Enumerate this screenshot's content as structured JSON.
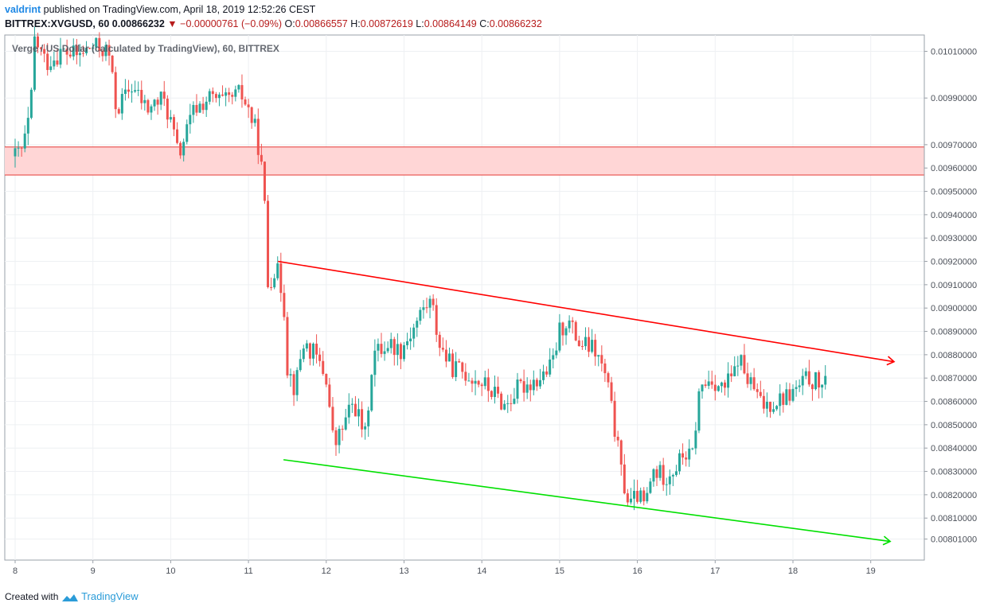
{
  "header": {
    "author": "valdrint",
    "published_text": "published on TradingView.com, April 18, 2019 12:52:26 CEST",
    "symbol": "BITTREX:XVGUSD, 60",
    "last": "0.00866232",
    "change": "▼ −0.00000761 (−0.09%)",
    "o_label": "O:",
    "o_value": "0.00866557",
    "h_label": "H:",
    "h_value": "0.00872619",
    "l_label": "L:",
    "l_value": "0.00864149",
    "c_label": "C:",
    "c_value": "0.00866232"
  },
  "footer": {
    "created_with": "Created with",
    "brand": "TradingView"
  },
  "chart_data": {
    "type": "candlestick",
    "title": "Verge / US Dollar (calculated by TradingView), 60, BITTREX",
    "x_ticks": [
      "8",
      "9",
      "10",
      "11",
      "12",
      "13",
      "14",
      "15",
      "16",
      "17",
      "18",
      "19"
    ],
    "x_range": [
      8,
      19.2
    ],
    "y_ticks": [
      "0.01010000",
      "0.00990000",
      "0.00970000",
      "0.00960000",
      "0.00950000",
      "0.00940000",
      "0.00930000",
      "0.00920000",
      "0.00910000",
      "0.00900000",
      "0.00890000",
      "0.00880000",
      "0.00870000",
      "0.00860000",
      "0.00850000",
      "0.00840000",
      "0.00830000",
      "0.00820000",
      "0.00810000",
      "0.00801000"
    ],
    "y_range": [
      0.00792,
      0.01017
    ],
    "colors": {
      "up": "#26a69a",
      "down": "#ef5350",
      "resistance_line": "#ff0000",
      "support_line": "#00e000",
      "zone_fill": "#ffd6d6",
      "zone_edge": "#e53935"
    },
    "resistance_zone": {
      "from": 0.00957,
      "to": 0.00969
    },
    "trendlines": [
      {
        "name": "upper",
        "x1": 11.38,
        "y1": 0.0092,
        "x2": 19.3,
        "y2": 0.00877,
        "color": "#ff0000"
      },
      {
        "name": "lower",
        "x1": 11.45,
        "y1": 0.00835,
        "x2": 19.25,
        "y2": 0.008,
        "color": "#00e000"
      }
    ],
    "path": [
      [
        8.0,
        0.00965
      ],
      [
        8.1,
        0.00968
      ],
      [
        8.2,
        0.00985
      ],
      [
        8.25,
        0.01015
      ],
      [
        8.4,
        0.01005
      ],
      [
        8.6,
        0.0101
      ],
      [
        8.8,
        0.01008
      ],
      [
        9.0,
        0.01012
      ],
      [
        9.2,
        0.0101
      ],
      [
        9.3,
        0.00985
      ],
      [
        9.5,
        0.00995
      ],
      [
        9.7,
        0.00985
      ],
      [
        9.9,
        0.0099
      ],
      [
        10.0,
        0.0098
      ],
      [
        10.1,
        0.00965
      ],
      [
        10.3,
        0.00985
      ],
      [
        10.5,
        0.0099
      ],
      [
        10.7,
        0.00988
      ],
      [
        10.9,
        0.00992
      ],
      [
        11.0,
        0.00985
      ],
      [
        11.1,
        0.00975
      ],
      [
        11.15,
        0.00965
      ],
      [
        11.2,
        0.0095
      ],
      [
        11.25,
        0.0091
      ],
      [
        11.35,
        0.00918
      ],
      [
        11.45,
        0.00905
      ],
      [
        11.5,
        0.00875
      ],
      [
        11.6,
        0.00865
      ],
      [
        11.7,
        0.00885
      ],
      [
        11.85,
        0.0088
      ],
      [
        12.0,
        0.0087
      ],
      [
        12.1,
        0.0084
      ],
      [
        12.2,
        0.00848
      ],
      [
        12.35,
        0.0086
      ],
      [
        12.5,
        0.00845
      ],
      [
        12.6,
        0.0088
      ],
      [
        12.8,
        0.00885
      ],
      [
        12.95,
        0.00882
      ],
      [
        13.1,
        0.0089
      ],
      [
        13.25,
        0.009
      ],
      [
        13.35,
        0.00903
      ],
      [
        13.45,
        0.00885
      ],
      [
        13.6,
        0.00875
      ],
      [
        13.8,
        0.00872
      ],
      [
        14.0,
        0.00868
      ],
      [
        14.2,
        0.00862
      ],
      [
        14.3,
        0.00858
      ],
      [
        14.45,
        0.00865
      ],
      [
        14.6,
        0.00868
      ],
      [
        14.75,
        0.0087
      ],
      [
        14.9,
        0.00875
      ],
      [
        15.0,
        0.0089
      ],
      [
        15.1,
        0.00895
      ],
      [
        15.25,
        0.00885
      ],
      [
        15.45,
        0.00882
      ],
      [
        15.6,
        0.0087
      ],
      [
        15.7,
        0.0085
      ],
      [
        15.8,
        0.00828
      ],
      [
        15.9,
        0.00815
      ],
      [
        16.0,
        0.0082
      ],
      [
        16.1,
        0.00815
      ],
      [
        16.2,
        0.0083
      ],
      [
        16.35,
        0.00828
      ],
      [
        16.5,
        0.00832
      ],
      [
        16.6,
        0.00838
      ],
      [
        16.7,
        0.00835
      ],
      [
        16.8,
        0.00865
      ],
      [
        16.95,
        0.0087
      ],
      [
        17.1,
        0.00865
      ],
      [
        17.25,
        0.00872
      ],
      [
        17.3,
        0.0088
      ],
      [
        17.4,
        0.0087
      ],
      [
        17.5,
        0.00865
      ],
      [
        17.6,
        0.00858
      ],
      [
        17.75,
        0.0086
      ],
      [
        17.9,
        0.00862
      ],
      [
        18.05,
        0.00865
      ],
      [
        18.2,
        0.0087
      ],
      [
        18.3,
        0.00868
      ],
      [
        18.45,
        0.00866
      ]
    ]
  }
}
